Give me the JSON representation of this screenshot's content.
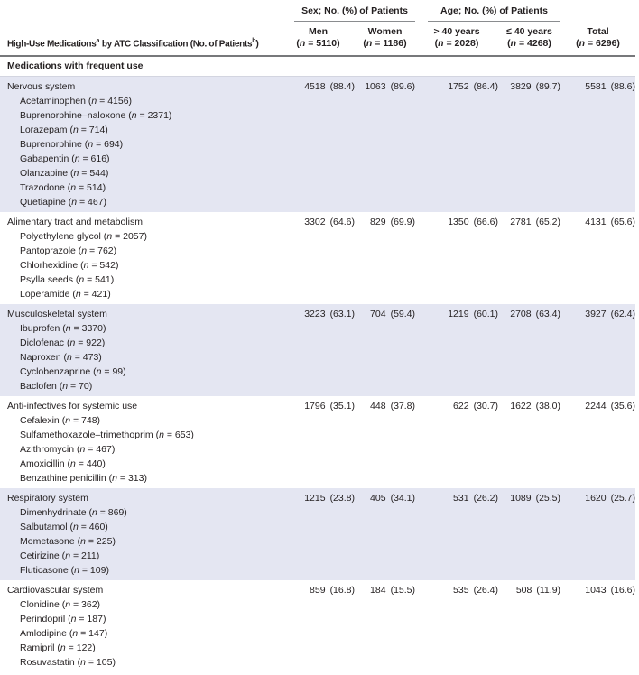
{
  "colors": {
    "row_shade": "#e4e6f2",
    "header_rule": "#77787b",
    "spanner_rule": "#8a8c8f",
    "section_rule": "#d3d5e0",
    "text": "#231f20"
  },
  "table": {
    "title": {
      "pre": "High-Use Medications",
      "sup1": "a",
      "mid": " by ATC Classification (No. of Patients",
      "sup2": "b",
      "post": ")"
    },
    "spanners": [
      {
        "label": "Sex; No. (%) of Patients"
      },
      {
        "label": "Age; No. (%) of Patients"
      }
    ],
    "columns": [
      {
        "label": "Men",
        "n": "5110"
      },
      {
        "label": "Women",
        "n": "1186"
      },
      {
        "label": "> 40 years",
        "n": "2028"
      },
      {
        "label": "≤ 40 years",
        "n": "4268"
      },
      {
        "label": "Total",
        "n": "6296"
      }
    ],
    "section_header": "Medications with frequent use",
    "groups": [
      {
        "category": "Nervous system",
        "shaded": true,
        "values": [
          {
            "count": "4518",
            "pct": "88.4"
          },
          {
            "count": "1063",
            "pct": "89.6"
          },
          {
            "count": "1752",
            "pct": "86.4"
          },
          {
            "count": "3829",
            "pct": "89.7"
          },
          {
            "count": "5581",
            "pct": "88.6"
          }
        ],
        "items": [
          {
            "name": "Acetaminophen",
            "n": "4156"
          },
          {
            "name": "Buprenorphine–naloxone",
            "n": "2371"
          },
          {
            "name": "Lorazepam",
            "n": "714"
          },
          {
            "name": "Buprenorphine",
            "n": "694"
          },
          {
            "name": "Gabapentin",
            "n": "616"
          },
          {
            "name": "Olanzapine",
            "n": "544"
          },
          {
            "name": "Trazodone",
            "n": "514"
          },
          {
            "name": "Quetiapine",
            "n": "467"
          }
        ]
      },
      {
        "category": "Alimentary tract and metabolism",
        "shaded": false,
        "values": [
          {
            "count": "3302",
            "pct": "64.6"
          },
          {
            "count": "829",
            "pct": "69.9"
          },
          {
            "count": "1350",
            "pct": "66.6"
          },
          {
            "count": "2781",
            "pct": "65.2"
          },
          {
            "count": "4131",
            "pct": "65.6"
          }
        ],
        "items": [
          {
            "name": "Polyethylene glycol",
            "n": "2057"
          },
          {
            "name": "Pantoprazole",
            "n": "762"
          },
          {
            "name": "Chlorhexidine",
            "n": "542"
          },
          {
            "name": "Psylla seeds",
            "n": "541"
          },
          {
            "name": "Loperamide",
            "n": "421"
          }
        ]
      },
      {
        "category": "Musculoskeletal system",
        "shaded": true,
        "values": [
          {
            "count": "3223",
            "pct": "63.1"
          },
          {
            "count": "704",
            "pct": "59.4"
          },
          {
            "count": "1219",
            "pct": "60.1"
          },
          {
            "count": "2708",
            "pct": "63.4"
          },
          {
            "count": "3927",
            "pct": "62.4"
          }
        ],
        "items": [
          {
            "name": "Ibuprofen",
            "n": "3370"
          },
          {
            "name": "Diclofenac",
            "n": "922"
          },
          {
            "name": "Naproxen",
            "n": "473"
          },
          {
            "name": "Cyclobenzaprine",
            "n": "99"
          },
          {
            "name": "Baclofen",
            "n": "70"
          }
        ]
      },
      {
        "category": "Anti-infectives for systemic use",
        "shaded": false,
        "values": [
          {
            "count": "1796",
            "pct": "35.1"
          },
          {
            "count": "448",
            "pct": "37.8"
          },
          {
            "count": "622",
            "pct": "30.7"
          },
          {
            "count": "1622",
            "pct": "38.0"
          },
          {
            "count": "2244",
            "pct": "35.6"
          }
        ],
        "items": [
          {
            "name": "Cefalexin",
            "n": "748"
          },
          {
            "name": "Sulfamethoxazole–trimethoprim",
            "n": "653"
          },
          {
            "name": "Azithromycin",
            "n": "467"
          },
          {
            "name": "Amoxicillin",
            "n": "440"
          },
          {
            "name": "Benzathine penicillin",
            "n": "313"
          }
        ]
      },
      {
        "category": "Respiratory system",
        "shaded": true,
        "values": [
          {
            "count": "1215",
            "pct": "23.8"
          },
          {
            "count": "405",
            "pct": "34.1"
          },
          {
            "count": "531",
            "pct": "26.2"
          },
          {
            "count": "1089",
            "pct": "25.5"
          },
          {
            "count": "1620",
            "pct": "25.7"
          }
        ],
        "items": [
          {
            "name": "Dimenhydrinate",
            "n": "869"
          },
          {
            "name": "Salbutamol",
            "n": "460"
          },
          {
            "name": "Mometasone",
            "n": "225"
          },
          {
            "name": "Cetirizine",
            "n": "211"
          },
          {
            "name": "Fluticasone",
            "n": "109"
          }
        ]
      },
      {
        "category": "Cardiovascular system",
        "shaded": false,
        "values": [
          {
            "count": "859",
            "pct": "16.8"
          },
          {
            "count": "184",
            "pct": "15.5"
          },
          {
            "count": "535",
            "pct": "26.4"
          },
          {
            "count": "508",
            "pct": "11.9"
          },
          {
            "count": "1043",
            "pct": "16.6"
          }
        ],
        "items": [
          {
            "name": "Clonidine",
            "n": "362"
          },
          {
            "name": "Perindopril",
            "n": "187"
          },
          {
            "name": "Amlodipine",
            "n": "147"
          },
          {
            "name": "Ramipril",
            "n": "122"
          },
          {
            "name": "Rosuvastatin",
            "n": "105"
          }
        ]
      }
    ]
  }
}
